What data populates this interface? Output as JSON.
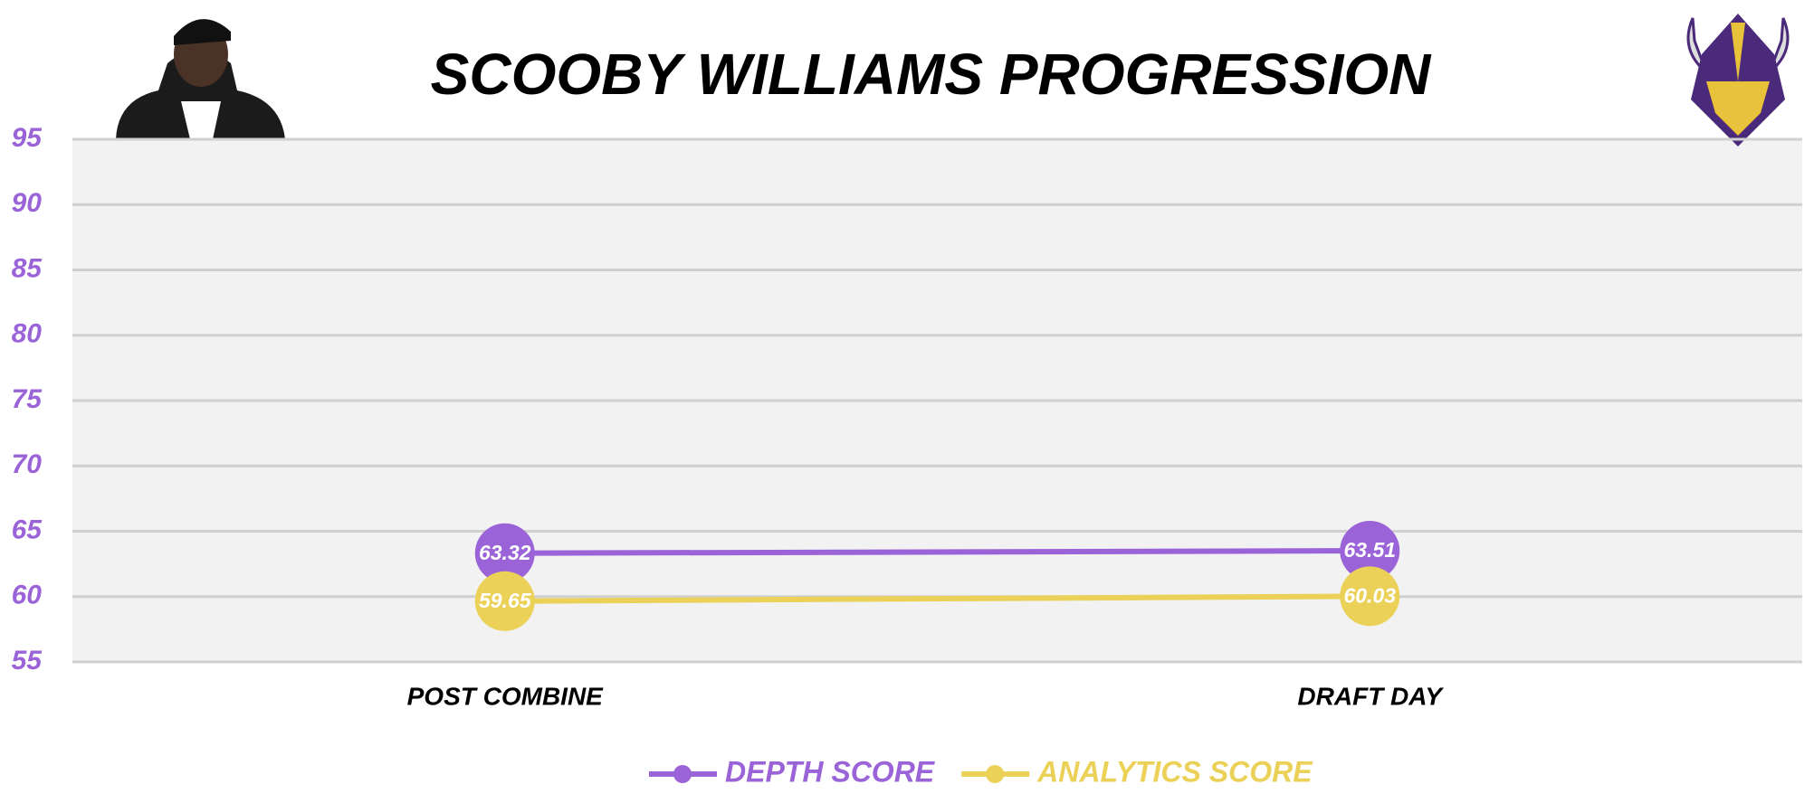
{
  "chart_data": {
    "type": "line",
    "title": "SCOOBY WILLIAMS PROGRESSION",
    "categories": [
      "POST COMBINE",
      "DRAFT DAY"
    ],
    "series": [
      {
        "name": "DEPTH SCORE",
        "color": "#9b63d8",
        "values": [
          63.32,
          63.51
        ]
      },
      {
        "name": "ANALYTICS SCORE",
        "color": "#ebd158",
        "values": [
          59.65,
          60.03
        ]
      }
    ],
    "ylim": [
      55,
      95
    ],
    "yticks": [
      55,
      60,
      65,
      70,
      75,
      80,
      85,
      90,
      95
    ],
    "grid": true,
    "tick_color": "#9b63d8"
  }
}
